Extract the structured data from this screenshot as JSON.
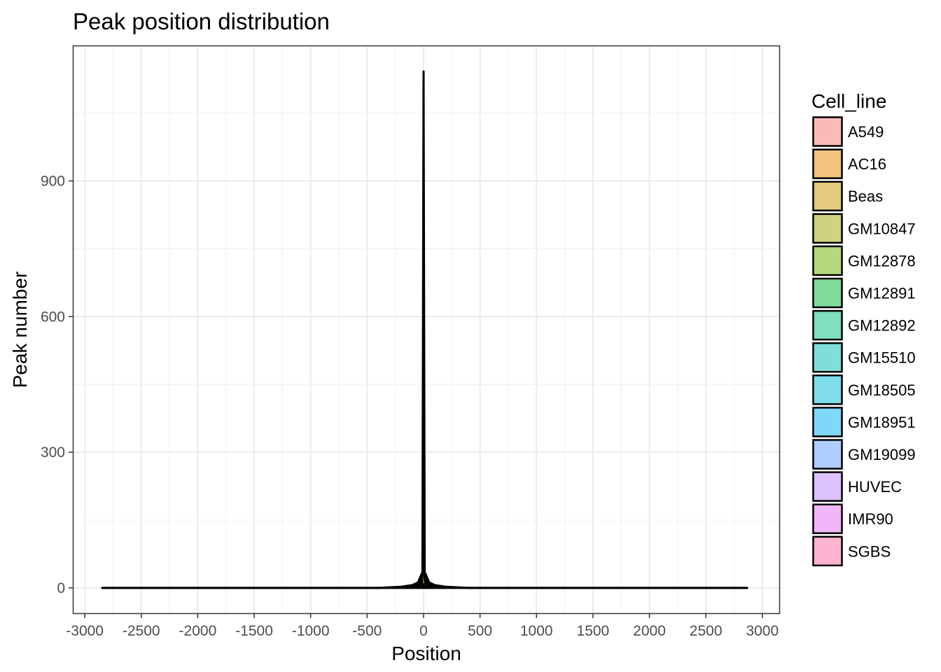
{
  "chart_data": {
    "type": "area",
    "title": "Peak position distribution",
    "xlabel": "Position",
    "ylabel": "Peak number",
    "xlim": [
      -3100,
      3150
    ],
    "ylim": [
      -56,
      1198
    ],
    "x_ticks": [
      -3000,
      -2500,
      -2000,
      -1500,
      -1000,
      -500,
      0,
      500,
      1000,
      1500,
      2000,
      2500,
      3000
    ],
    "x_tick_labels": [
      "-3000",
      "-2500",
      "-2000",
      "-1500",
      "-1000",
      "-500",
      "0",
      "500",
      "1000",
      "1500",
      "2000",
      "2500",
      "3000"
    ],
    "y_ticks": [
      0,
      300,
      600,
      900
    ],
    "y_tick_labels": [
      "0",
      "300",
      "600",
      "900"
    ],
    "grid": true,
    "stacked": true,
    "legend_position": "right",
    "legend_title": "Cell_line",
    "series": [
      {
        "name": "A549",
        "color": "#F8766D",
        "x": [
          -2850,
          -400,
          -200,
          -100,
          -50,
          -10,
          0,
          10,
          50,
          100,
          200,
          400,
          2870
        ],
        "values": [
          0,
          0,
          0.1,
          0.2,
          0.4,
          1,
          3,
          1,
          0.4,
          0.2,
          0.1,
          0,
          0
        ]
      },
      {
        "name": "AC16",
        "color": "#E58700",
        "x": [
          -2850,
          -400,
          -200,
          -100,
          -50,
          -10,
          0,
          10,
          50,
          100,
          200,
          400,
          2870
        ],
        "values": [
          0,
          0,
          0.1,
          0.2,
          0.4,
          1,
          3,
          1,
          0.4,
          0.2,
          0.1,
          0,
          0
        ]
      },
      {
        "name": "Beas",
        "color": "#C99800",
        "x": [
          -2850,
          -400,
          -200,
          -100,
          -50,
          -10,
          0,
          10,
          50,
          100,
          200,
          400,
          2870
        ],
        "values": [
          0,
          0,
          0.1,
          0.2,
          0.4,
          1,
          3,
          1,
          0.4,
          0.2,
          0.1,
          0,
          0
        ]
      },
      {
        "name": "GM10847",
        "color": "#A3A500",
        "x": [
          -2850,
          -400,
          -200,
          -100,
          -50,
          -10,
          0,
          10,
          50,
          100,
          200,
          400,
          2870
        ],
        "values": [
          0,
          0,
          0.2,
          0.5,
          1,
          3,
          45,
          3,
          1,
          0.5,
          0.2,
          0,
          0
        ]
      },
      {
        "name": "GM12878",
        "color": "#6BB100",
        "x": [
          -2850,
          -400,
          -200,
          -100,
          -50,
          -10,
          0,
          10,
          50,
          100,
          200,
          400,
          2870
        ],
        "values": [
          0,
          0,
          0.3,
          0.8,
          1.5,
          4,
          90,
          4,
          1.5,
          0.8,
          0.3,
          0,
          0
        ]
      },
      {
        "name": "GM12891",
        "color": "#00BA38",
        "x": [
          -2850,
          -400,
          -200,
          -100,
          -50,
          -10,
          0,
          10,
          50,
          100,
          200,
          400,
          2870
        ],
        "values": [
          0,
          0,
          0.2,
          0.5,
          1,
          3,
          45,
          3,
          1,
          0.5,
          0.2,
          0,
          0
        ]
      },
      {
        "name": "GM12892",
        "color": "#00BF7D",
        "x": [
          -2850,
          -400,
          -200,
          -100,
          -50,
          -10,
          0,
          10,
          50,
          100,
          200,
          400,
          2870
        ],
        "values": [
          0,
          0,
          0.2,
          0.5,
          1,
          3,
          45,
          3,
          1,
          0.5,
          0.2,
          0,
          0
        ]
      },
      {
        "name": "GM15510",
        "color": "#00C0AF",
        "x": [
          -2850,
          -400,
          -200,
          -100,
          -50,
          -10,
          0,
          10,
          50,
          100,
          200,
          400,
          2870
        ],
        "values": [
          0,
          0,
          0.2,
          0.5,
          1,
          3,
          90,
          3,
          1,
          0.5,
          0.2,
          0,
          0
        ]
      },
      {
        "name": "GM18505",
        "color": "#00BCD8",
        "x": [
          -2850,
          -400,
          -200,
          -100,
          -50,
          -10,
          0,
          10,
          50,
          100,
          200,
          400,
          2870
        ],
        "values": [
          0,
          0,
          0.3,
          0.8,
          1.5,
          4,
          290,
          4,
          1.5,
          0.8,
          0.3,
          0,
          0
        ]
      },
      {
        "name": "GM18951",
        "color": "#00B0F6",
        "x": [
          -2850,
          -400,
          -200,
          -100,
          -50,
          -10,
          0,
          10,
          50,
          100,
          200,
          400,
          2870
        ],
        "values": [
          0,
          0,
          0.2,
          0.5,
          1,
          3,
          300,
          3,
          1,
          0.5,
          0.2,
          0,
          0
        ]
      },
      {
        "name": "GM19099",
        "color": "#619CFF",
        "x": [
          -2850,
          -400,
          -200,
          -100,
          -50,
          -10,
          0,
          10,
          50,
          100,
          200,
          400,
          2870
        ],
        "values": [
          0,
          0,
          0.2,
          0.5,
          1,
          3,
          195,
          3,
          1,
          0.5,
          0.2,
          0,
          0
        ]
      },
      {
        "name": "HUVEC",
        "color": "#B983FF",
        "x": [
          -2850,
          -400,
          -200,
          -100,
          -50,
          -10,
          0,
          10,
          50,
          100,
          200,
          400,
          2870
        ],
        "values": [
          0,
          0,
          0.1,
          0.3,
          0.6,
          2,
          15,
          2,
          0.6,
          0.3,
          0.1,
          0,
          0
        ]
      },
      {
        "name": "IMR90",
        "color": "#E76BF3",
        "x": [
          -2850,
          -400,
          -200,
          -100,
          -50,
          -10,
          0,
          10,
          50,
          100,
          200,
          400,
          2870
        ],
        "values": [
          0,
          0,
          0.1,
          0.3,
          0.6,
          2,
          10,
          2,
          0.6,
          0.3,
          0.1,
          0,
          0
        ]
      },
      {
        "name": "SGBS",
        "color": "#FF67A4",
        "x": [
          -2850,
          -400,
          -200,
          -100,
          -50,
          -10,
          0,
          10,
          50,
          100,
          200,
          400,
          2870
        ],
        "values": [
          0,
          0,
          0.1,
          0.3,
          0.6,
          2,
          8,
          2,
          0.6,
          0.3,
          0.1,
          0,
          0
        ]
      }
    ]
  }
}
